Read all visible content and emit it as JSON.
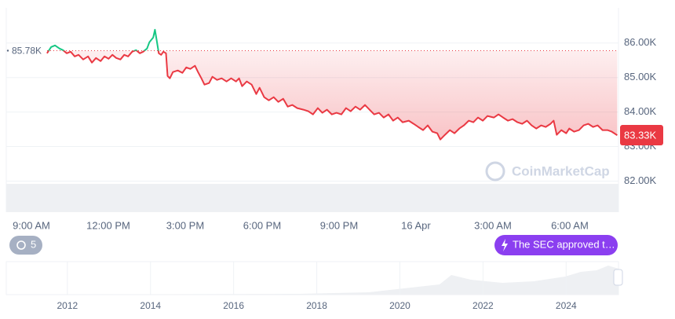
{
  "chart_data": {
    "type": "line",
    "x": [
      9.61,
      9.77,
      9.92,
      10.1,
      10.23,
      10.38,
      10.53,
      10.69,
      10.84,
      11.02,
      11.21,
      11.36,
      11.52,
      11.7,
      11.85,
      12.01,
      12.16,
      12.31,
      12.47,
      12.62,
      12.77,
      12.93,
      13.08,
      13.23,
      13.36,
      13.51,
      13.6,
      13.75,
      13.82,
      13.88,
      13.97,
      14.06,
      14.15,
      14.25,
      14.31,
      14.4,
      14.52,
      14.71,
      14.89,
      15.04,
      15.2,
      15.38,
      15.5,
      15.63,
      15.75,
      15.93,
      16.06,
      16.24,
      16.42,
      16.61,
      16.79,
      16.98,
      17.1,
      17.22,
      17.4,
      17.59,
      17.77,
      17.9,
      18.08,
      18.26,
      18.45,
      18.63,
      18.82,
      19.0,
      19.18,
      19.37,
      19.61,
      19.8,
      19.98,
      20.17,
      20.35,
      20.53,
      20.72,
      20.9,
      21.09,
      21.27,
      21.45,
      21.64,
      21.82,
      22.01,
      22.19,
      22.37,
      22.56,
      22.74,
      22.93,
      23.11,
      23.29,
      23.48,
      23.72,
      23.91,
      24.09,
      24.28,
      24.46,
      24.64,
      24.83,
      24.95,
      25.13,
      25.32,
      25.5,
      25.69,
      25.87,
      26.06,
      26.24,
      26.42,
      26.61,
      26.79,
      27.04,
      27.22,
      27.4,
      27.59,
      27.77,
      27.96,
      28.14,
      28.33,
      28.51,
      28.69,
      28.88,
      29.06,
      29.25,
      29.37,
      29.49,
      29.67,
      29.86,
      29.98,
      30.17,
      30.36,
      30.54,
      30.72,
      30.91,
      31.09,
      31.28,
      31.47,
      31.64,
      31.85
    ],
    "values": [
      85705,
      85886,
      85932,
      85841,
      85795,
      85705,
      85750,
      85614,
      85659,
      85523,
      85614,
      85432,
      85568,
      85477,
      85614,
      85545,
      85659,
      85568,
      85523,
      85659,
      85614,
      85750,
      85795,
      85705,
      85750,
      85841,
      86023,
      86159,
      86386,
      86114,
      85705,
      85659,
      85750,
      85705,
      85045,
      84977,
      85159,
      85205,
      85136,
      85295,
      85250,
      85341,
      85159,
      84977,
      84795,
      84841,
      85023,
      84932,
      84977,
      84886,
      84977,
      84886,
      84977,
      84750,
      84886,
      84795,
      84523,
      84705,
      84432,
      84341,
      84432,
      84295,
      84386,
      84159,
      84205,
      84114,
      84068,
      84023,
      83932,
      84114,
      83977,
      84068,
      83932,
      83977,
      83932,
      84114,
      84023,
      84159,
      84068,
      84205,
      84068,
      83932,
      83977,
      83841,
      83932,
      83750,
      83841,
      83705,
      83750,
      83659,
      83568,
      83477,
      83614,
      83432,
      83386,
      83205,
      83341,
      83477,
      83386,
      83523,
      83614,
      83750,
      83705,
      83841,
      83750,
      83886,
      83841,
      83932,
      83841,
      83750,
      83795,
      83705,
      83659,
      83750,
      83614,
      83523,
      83614,
      83568,
      83659,
      83750,
      83341,
      83477,
      83386,
      83523,
      83432,
      83477,
      83614,
      83659,
      83568,
      83614,
      83477,
      83477,
      83432,
      83330
    ],
    "color": "#ea3943",
    "above_color": "#16c784",
    "xlim": [
      8.02,
      31.9
    ],
    "xticks": [
      {
        "value": 9,
        "label": "9:00 AM"
      },
      {
        "value": 12,
        "label": "12:00 PM"
      },
      {
        "value": 15,
        "label": "3:00 PM"
      },
      {
        "value": 18,
        "label": "6:00 PM"
      },
      {
        "value": 21,
        "label": "9:00 PM"
      },
      {
        "value": 24,
        "label": "16 Apr"
      },
      {
        "value": 27,
        "label": "3:00 AM"
      },
      {
        "value": 30,
        "label": "6:00 AM"
      }
    ],
    "ylim": [
      81100,
      87020
    ],
    "yticks": [
      {
        "value": 82000,
        "label": "82.00K"
      },
      {
        "value": 83000,
        "label": "83.00K"
      },
      {
        "value": 84000,
        "label": "84.00K"
      },
      {
        "value": 85000,
        "label": "85.00K"
      },
      {
        "value": 86000,
        "label": "86.00K"
      }
    ],
    "grid": true,
    "reference": {
      "value": 85780,
      "label": "85.78K"
    },
    "current": {
      "value": 83330,
      "label": "83.33K"
    },
    "watermark": "CoinMarketCap",
    "event_count": 5,
    "annotation": "The SEC approved t…",
    "navigator": {
      "xlim": [
        2010.53,
        2025.26
      ],
      "xticks": [
        2012,
        2014,
        2016,
        2018,
        2020,
        2022,
        2024
      ]
    }
  }
}
